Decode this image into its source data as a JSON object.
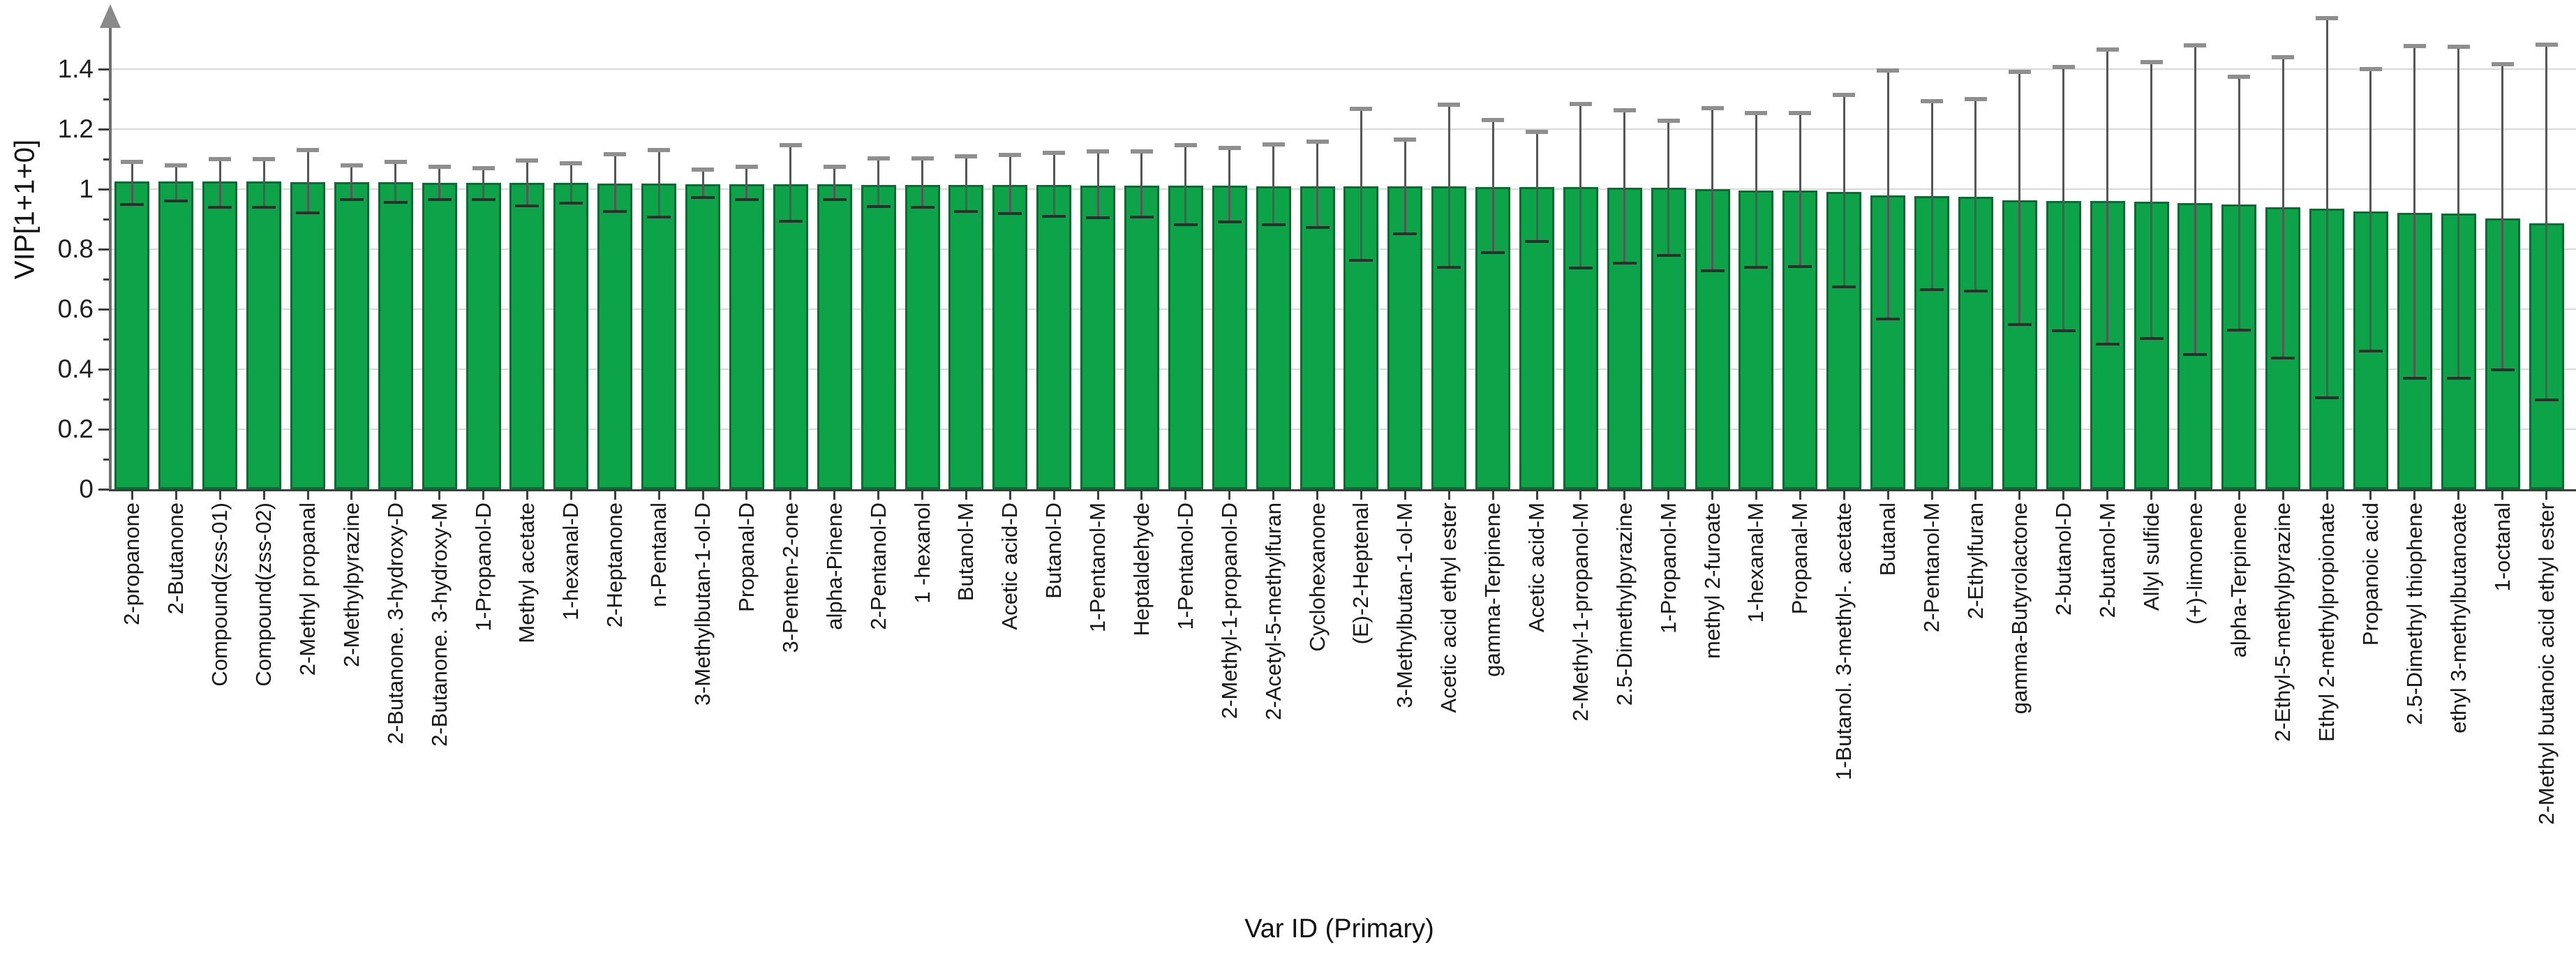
{
  "chart_data": {
    "type": "bar",
    "title": "",
    "xlabel": "Var ID (Primary)",
    "ylabel": "VIP[1+1+0]",
    "ylim": [
      0,
      1.5
    ],
    "grid": "horizontal-only",
    "legend": "none",
    "bar_color": "#0CA349",
    "bar_border_color": "#0a6e33",
    "error_bar_color": "#575757",
    "ytick_labels": [
      "0",
      "0.2",
      "0.4",
      "0.6",
      "0.8",
      "1",
      "1.2",
      "1.4"
    ],
    "ytick_step": 0.2,
    "minor_yticks": [
      0.1,
      0.3,
      0.5,
      0.7,
      0.9,
      1.1,
      1.3
    ],
    "categories": [
      "2-propanone",
      "2-Butanone",
      "Compound(zss-01)",
      "Compound(zss-02)",
      "2-Methyl propanal",
      "2-Methylpyrazine",
      "2-Butanone. 3-hydroxy-D",
      "2-Butanone. 3-hydroxy-M",
      "1-Propanol-D",
      "Methyl acetate",
      "1-hexanal-D",
      "2-Heptanone",
      "n-Pentanal",
      "3-Methylbutan-1-ol-D",
      "Propanal-D",
      "3-Penten-2-one",
      "alpha-Pinene",
      "2-Pentanol-D",
      "1 -hexanol",
      "Butanol-M",
      "Acetic acid-D",
      "Butanol-D",
      "1-Pentanol-M",
      "Heptaldehyde",
      "1-Pentanol-D",
      "2-Methyl-1-propanol-D",
      "2-Acetyl-5-methylfuran",
      "Cyclohexanone",
      "(E)-2-Heptenal",
      "3-Methylbutan-1-ol-M",
      "Acetic acid ethyl ester",
      "gamma-Terpinene",
      "Acetic acid-M",
      "2-Methyl-1-propanol-M",
      "2.5-Dimethylpyrazine",
      "1-Propanol-M",
      "methyl 2-furoate",
      "1-hexanal-M",
      "Propanal-M",
      "1-Butanol. 3-methyl-. acetate",
      "Butanal",
      "2-Pentanol-M",
      "2-Ethylfuran",
      "gamma-Butyrolactone",
      "2-butanol-D",
      "2-butanol-M",
      "Allyl sulfide",
      "(+)-limonene",
      "alpha-Terpinene",
      "2-Ethyl-5-methylpyrazine",
      "Ethyl 2-methylpropionate",
      "Propanoic acid",
      "2.5-Dimethyl thiophene",
      "ethyl 3-methylbutanoate",
      "1-octanal",
      "2-Methyl butanoic acid ethyl ester"
    ],
    "values": [
      1.025,
      1.025,
      1.025,
      1.025,
      1.024,
      1.023,
      1.023,
      1.022,
      1.022,
      1.021,
      1.02,
      1.019,
      1.018,
      1.017,
      1.017,
      1.016,
      1.016,
      1.015,
      1.015,
      1.014,
      1.013,
      1.013,
      1.012,
      1.012,
      1.011,
      1.011,
      1.01,
      1.01,
      1.009,
      1.009,
      1.009,
      1.008,
      1.007,
      1.007,
      1.005,
      1.005,
      1.0,
      0.996,
      0.995,
      0.991,
      0.979,
      0.977,
      0.975,
      0.963,
      0.961,
      0.96,
      0.958,
      0.954,
      0.949,
      0.94,
      0.935,
      0.926,
      0.921,
      0.919,
      0.903,
      0.886
    ],
    "error_low": [
      0.95,
      0.96,
      0.94,
      0.94,
      0.92,
      0.965,
      0.955,
      0.965,
      0.965,
      0.945,
      0.954,
      0.926,
      0.908,
      0.973,
      0.966,
      0.894,
      0.964,
      0.943,
      0.94,
      0.926,
      0.919,
      0.909,
      0.905,
      0.907,
      0.882,
      0.891,
      0.881,
      0.872,
      0.763,
      0.851,
      0.739,
      0.788,
      0.826,
      0.737,
      0.754,
      0.779,
      0.728,
      0.74,
      0.742,
      0.675,
      0.568,
      0.665,
      0.661,
      0.549,
      0.528,
      0.484,
      0.502,
      0.449,
      0.53,
      0.437,
      0.305,
      0.46,
      0.37,
      0.37,
      0.398,
      0.298
    ],
    "error_high": [
      1.09,
      1.08,
      1.1,
      1.1,
      1.13,
      1.08,
      1.09,
      1.075,
      1.07,
      1.095,
      1.086,
      1.117,
      1.131,
      1.066,
      1.075,
      1.146,
      1.075,
      1.102,
      1.102,
      1.109,
      1.114,
      1.121,
      1.126,
      1.126,
      1.147,
      1.138,
      1.149,
      1.158,
      1.267,
      1.166,
      1.281,
      1.23,
      1.191,
      1.284,
      1.263,
      1.228,
      1.27,
      1.254,
      1.254,
      1.314,
      1.395,
      1.293,
      1.3,
      1.391,
      1.407,
      1.465,
      1.423,
      1.48,
      1.374,
      1.44,
      1.57,
      1.4,
      1.477,
      1.474,
      1.417,
      1.481
    ]
  },
  "layout_text": {
    "y_axis_title": "VIP[1+1+0]",
    "x_axis_title": "Var ID (Primary)"
  }
}
